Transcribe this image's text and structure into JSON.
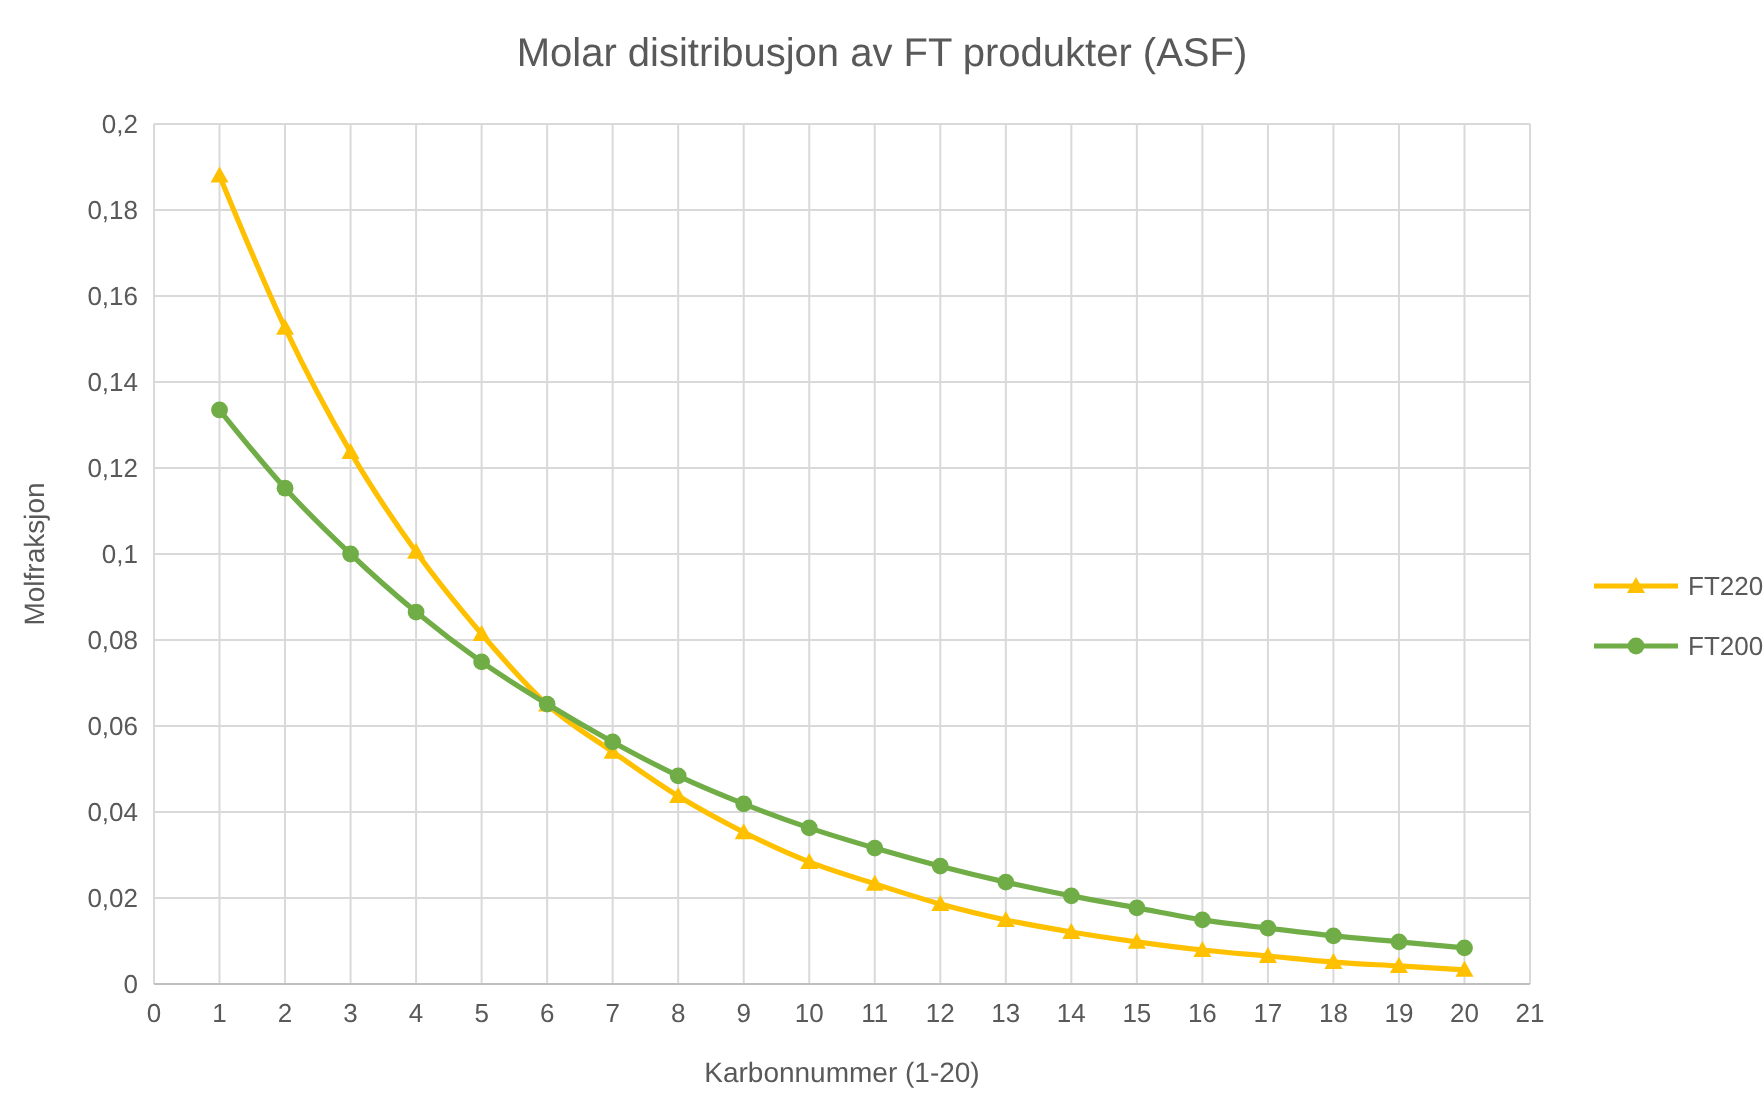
{
  "chart_data": {
    "type": "line",
    "title": "Molar disitribusjon av FT produkter (ASF)",
    "xlabel": "Karbonnummer (1-20)",
    "ylabel": "Molfraksjon",
    "x": [
      1,
      2,
      3,
      4,
      5,
      6,
      7,
      8,
      9,
      10,
      11,
      12,
      13,
      14,
      15,
      16,
      17,
      18,
      19,
      20
    ],
    "series": [
      {
        "name": "FT220",
        "color": "#ffc000",
        "marker": "triangle",
        "values": [
          0.188,
          0.1526,
          0.1237,
          0.1005,
          0.0814,
          0.065,
          0.054,
          0.0437,
          0.0353,
          0.0284,
          0.0233,
          0.0186,
          0.0149,
          0.0121,
          0.0098,
          0.0079,
          0.0065,
          0.0051,
          0.0042,
          0.0033
        ]
      },
      {
        "name": "FT200",
        "color": "#70ad47",
        "marker": "circle",
        "values": [
          0.1335,
          0.1153,
          0.1,
          0.0865,
          0.0749,
          0.0651,
          0.0563,
          0.0484,
          0.0419,
          0.0363,
          0.0316,
          0.0274,
          0.0237,
          0.0205,
          0.0177,
          0.0149,
          0.013,
          0.0112,
          0.0098,
          0.0084
        ]
      }
    ],
    "xlim": [
      0,
      21
    ],
    "xticks": [
      0,
      1,
      2,
      3,
      4,
      5,
      6,
      7,
      8,
      9,
      10,
      11,
      12,
      13,
      14,
      15,
      16,
      17,
      18,
      19,
      20,
      21
    ],
    "ylim": [
      0,
      0.2
    ],
    "yticks": [
      0,
      {
        "value": 0.02,
        "label": "0,02"
      },
      {
        "value": 0.04,
        "label": "0,04"
      },
      {
        "value": 0.06,
        "label": "0,06"
      },
      {
        "value": 0.08,
        "label": "0,08"
      },
      {
        "value": 0.1,
        "label": "0,1"
      },
      {
        "value": 0.12,
        "label": "0,12"
      },
      {
        "value": 0.14,
        "label": "0,14"
      },
      {
        "value": 0.16,
        "label": "0,16"
      },
      {
        "value": 0.18,
        "label": "0,18"
      },
      {
        "value": 0.2,
        "label": "0,2"
      }
    ],
    "grid": true,
    "legend": "right",
    "line_style": "solid"
  }
}
